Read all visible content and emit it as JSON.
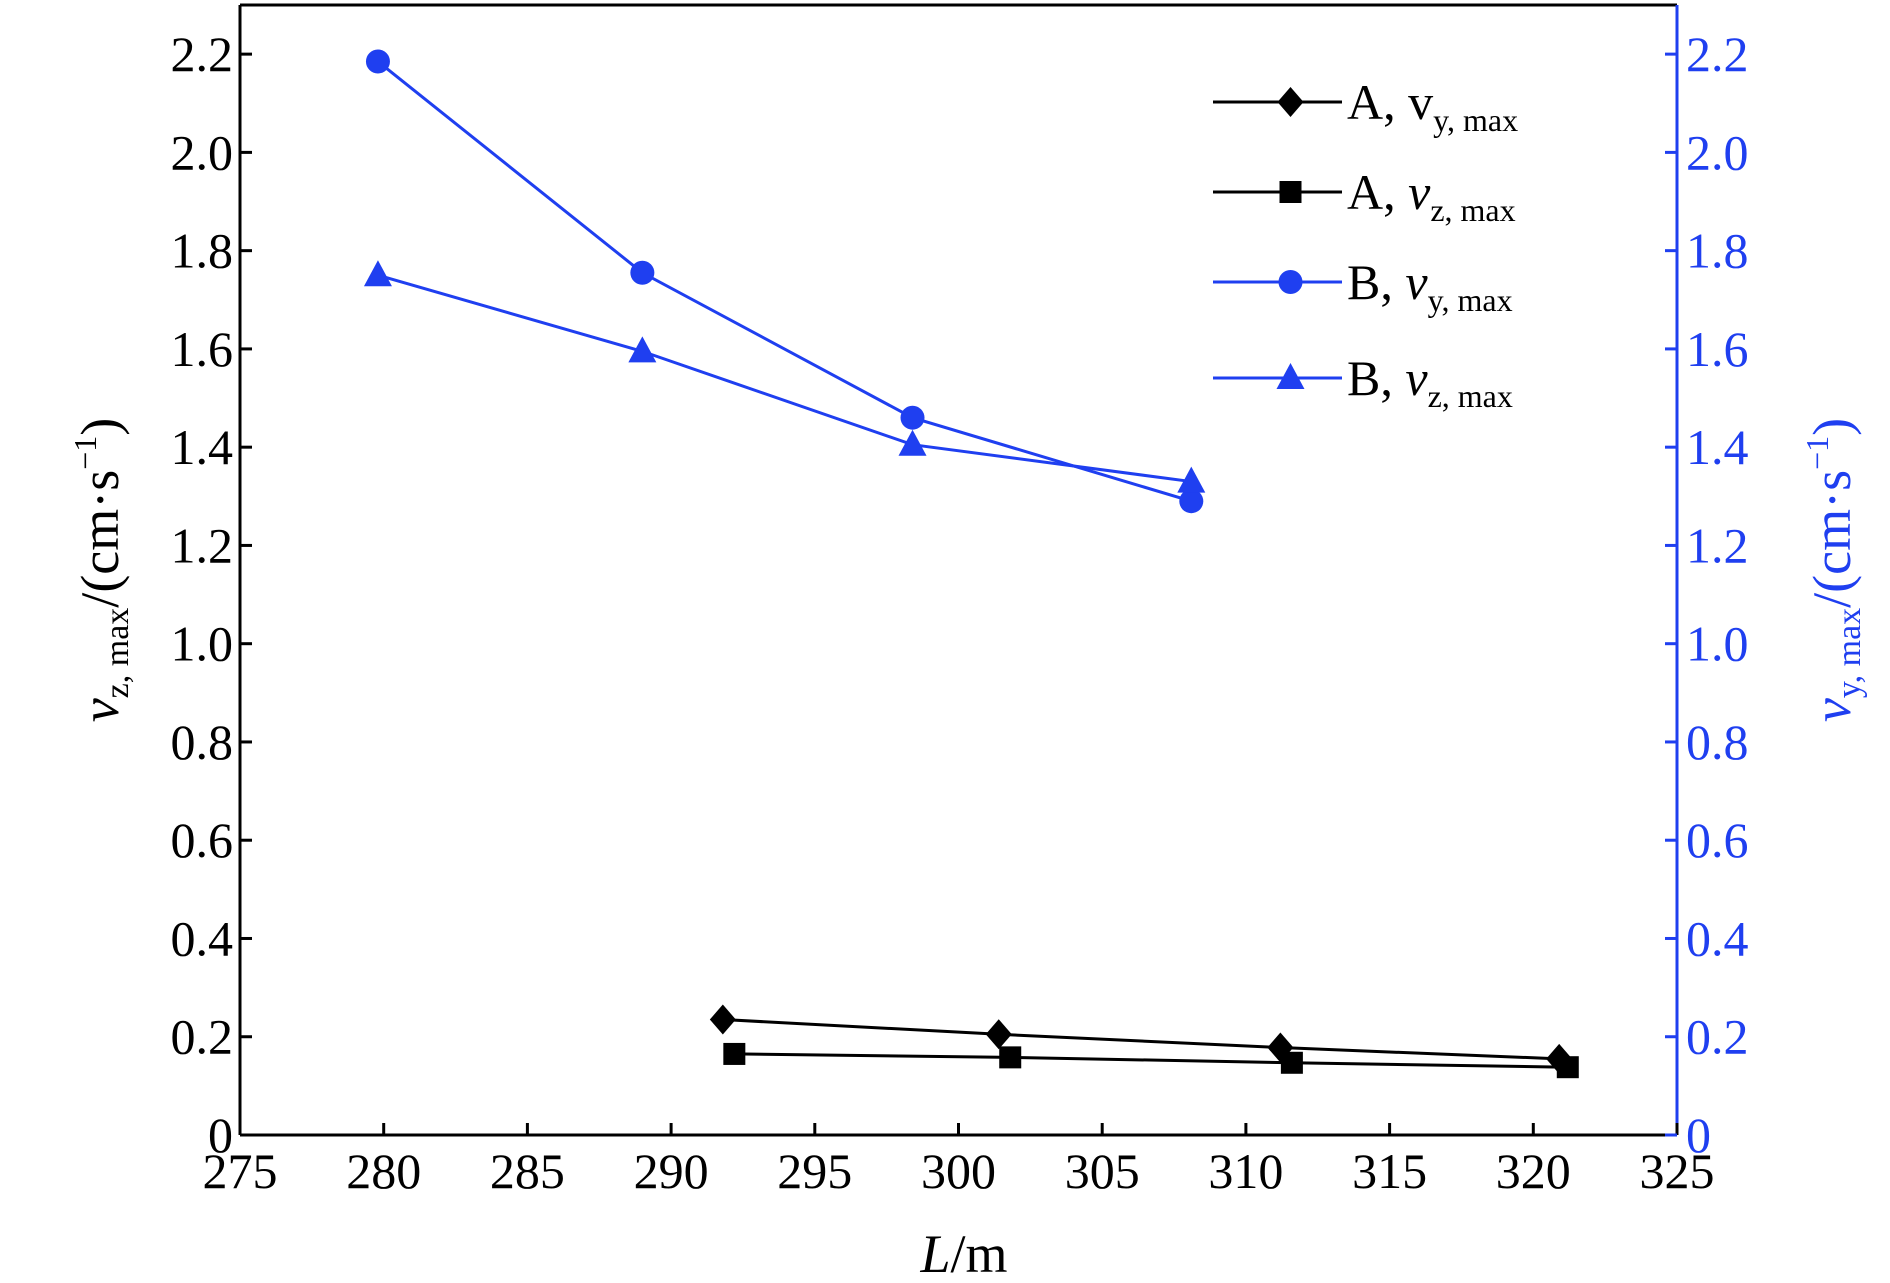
{
  "chart_data": {
    "type": "line",
    "xlabel": {
      "main": "L",
      "unit": "/m"
    },
    "ylabel_left": {
      "main": "v",
      "sub": "z, max",
      "unit": "/(cm·s",
      "sup": "−1",
      "close": ")"
    },
    "ylabel_right": {
      "main": "v",
      "sub": "y, max",
      "unit": "/(cm·s",
      "sup": "−1",
      "close": ")"
    },
    "xlim": [
      275,
      325
    ],
    "ylim_left": [
      0,
      2.3
    ],
    "ylim_right": [
      0,
      2.3
    ],
    "x_ticks": [
      "275",
      "280",
      "285",
      "290",
      "295",
      "300",
      "305",
      "310",
      "315",
      "320",
      "325"
    ],
    "y_ticks_left": [
      "0",
      "0.2",
      "0.4",
      "0.6",
      "0.8",
      "1.0",
      "1.2",
      "1.4",
      "1.6",
      "1.8",
      "2.0",
      "2.2"
    ],
    "y_ticks_right": [
      "0",
      "0.2",
      "0.4",
      "0.6",
      "0.8",
      "1.0",
      "1.2",
      "1.4",
      "1.6",
      "1.8",
      "2.0",
      "2.2"
    ],
    "grid": false,
    "legend_placement": "top-right",
    "colors": {
      "black": "#000000",
      "blue": "#1f3ff0"
    },
    "series": [
      {
        "name": "A, vy, max",
        "label_lead": "A, ",
        "label_var": "v",
        "label_sub": "y, max",
        "marker": "diamond",
        "color": "#000000",
        "axis": "right",
        "x": [
          291.8,
          301.4,
          311.2,
          320.9
        ],
        "y": [
          0.235,
          0.205,
          0.178,
          0.155
        ]
      },
      {
        "name": "A, vz, max",
        "label_lead": "A, ",
        "label_var": "v",
        "label_sub": "z, max",
        "marker": "square",
        "color": "#000000",
        "axis": "left",
        "x": [
          292.2,
          301.8,
          311.6,
          321.2
        ],
        "y": [
          0.165,
          0.158,
          0.147,
          0.138
        ]
      },
      {
        "name": "B, vy, max",
        "label_lead": "B, ",
        "label_var": "v",
        "label_sub": "y, max",
        "marker": "circle",
        "color": "#1f3ff0",
        "axis": "right",
        "x": [
          279.8,
          289.0,
          298.4,
          308.1
        ],
        "y": [
          2.185,
          1.755,
          1.46,
          1.29
        ]
      },
      {
        "name": "B, vz, max",
        "label_lead": "B, ",
        "label_var": "v",
        "label_sub": "z, max",
        "marker": "triangle",
        "color": "#1f3ff0",
        "axis": "left",
        "x": [
          279.8,
          289.0,
          298.4,
          308.1
        ],
        "y": [
          1.75,
          1.595,
          1.405,
          1.33
        ]
      }
    ]
  }
}
